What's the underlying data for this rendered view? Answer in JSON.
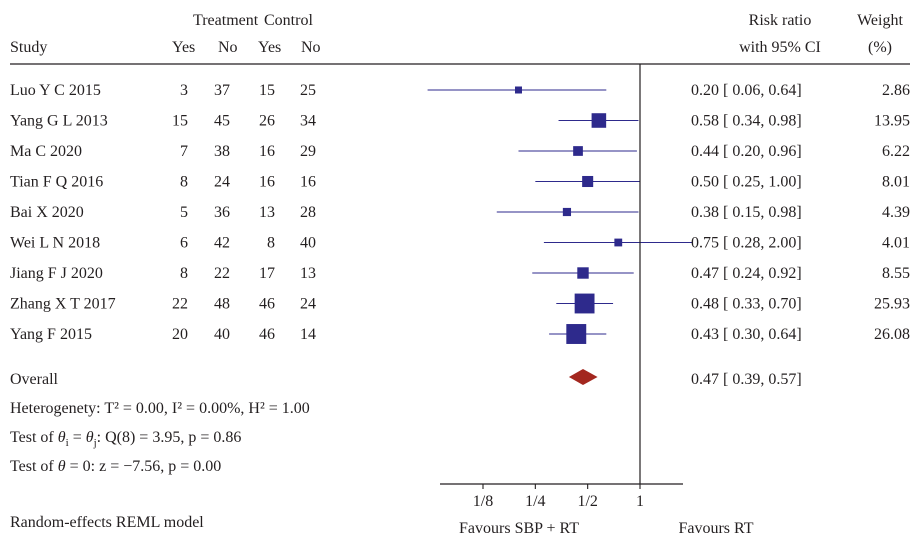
{
  "header": {
    "group_treatment": "Treatment",
    "group_control": "Control",
    "study": "Study",
    "yes": "Yes",
    "no": "No",
    "yes2": "Yes",
    "no2": "No",
    "rr_line1": "Risk ratio",
    "rr_line2": "with 95% CI",
    "weight_line1": "Weight",
    "weight_line2": "(%)"
  },
  "colors": {
    "marker": "#2e2a8c",
    "ci_line": "#2e2a8c",
    "overall_diamond": "#a3271f",
    "axis": "#231f20"
  },
  "footer": {
    "overall_label": "Overall",
    "overall_ci_text": "0.47 [  0.39,  0.57]",
    "heterogeneity": "Heterogenety: T² = 0.00, I² = 0.00%, H² = 1.00",
    "test_theta_prefix": "Test of ",
    "test_theta_rest": ": Q(8) = 3.95, p = 0.86",
    "test_zero_prefix": "Test of ",
    "test_zero_rest": " = 0: z = −7.56, p = 0.00",
    "model": "Random-effects REML model",
    "favours_left": "Favours SBP + RT",
    "favours_right": "Favours RT"
  },
  "chart_data": {
    "type": "forest",
    "scale": "log",
    "xlim": [
      0.05,
      2.0
    ],
    "ticks": [
      {
        "value": 0.125,
        "label": "1/8"
      },
      {
        "value": 0.25,
        "label": "1/4"
      },
      {
        "value": 0.5,
        "label": "1/2"
      },
      {
        "value": 1,
        "label": "1"
      }
    ],
    "studies": [
      {
        "name": "Luo Y C 2015",
        "t_yes": "3",
        "t_no": "37",
        "c_yes": "15",
        "c_no": "25",
        "rr": 0.2,
        "lo": 0.06,
        "hi": 0.64,
        "ci_text": "0.20 [  0.06,  0.64]",
        "weight": 2.86,
        "weight_text": "2.86"
      },
      {
        "name": "Yang G L 2013",
        "t_yes": "15",
        "t_no": "45",
        "c_yes": "26",
        "c_no": "34",
        "rr": 0.58,
        "lo": 0.34,
        "hi": 0.98,
        "ci_text": "0.58 [  0.34,  0.98]",
        "weight": 13.95,
        "weight_text": "13.95"
      },
      {
        "name": "Ma C 2020",
        "t_yes": "7",
        "t_no": "38",
        "c_yes": "16",
        "c_no": "29",
        "rr": 0.44,
        "lo": 0.2,
        "hi": 0.96,
        "ci_text": "0.44 [  0.20,  0.96]",
        "weight": 6.22,
        "weight_text": "6.22"
      },
      {
        "name": "Tian F Q 2016",
        "t_yes": "8",
        "t_no": "24",
        "c_yes": "16",
        "c_no": "16",
        "rr": 0.5,
        "lo": 0.25,
        "hi": 1.0,
        "ci_text": "0.50 [  0.25,  1.00]",
        "weight": 8.01,
        "weight_text": "8.01"
      },
      {
        "name": "Bai X 2020",
        "t_yes": "5",
        "t_no": "36",
        "c_yes": "13",
        "c_no": "28",
        "rr": 0.38,
        "lo": 0.15,
        "hi": 0.98,
        "ci_text": "0.38 [  0.15,  0.98]",
        "weight": 4.39,
        "weight_text": "4.39"
      },
      {
        "name": "Wei L N 2018",
        "t_yes": "6",
        "t_no": "42",
        "c_yes": "8",
        "c_no": "40",
        "rr": 0.75,
        "lo": 0.28,
        "hi": 2.0,
        "ci_text": "0.75 [  0.28,  2.00]",
        "weight": 4.01,
        "weight_text": "4.01"
      },
      {
        "name": "Jiang F J 2020",
        "t_yes": "8",
        "t_no": "22",
        "c_yes": "17",
        "c_no": "13",
        "rr": 0.47,
        "lo": 0.24,
        "hi": 0.92,
        "ci_text": "0.47 [  0.24,  0.92]",
        "weight": 8.55,
        "weight_text": "8.55"
      },
      {
        "name": "Zhang X T 2017",
        "t_yes": "22",
        "t_no": "48",
        "c_yes": "46",
        "c_no": "24",
        "rr": 0.48,
        "lo": 0.33,
        "hi": 0.7,
        "ci_text": "0.48 [  0.33,  0.70]",
        "weight": 25.93,
        "weight_text": "25.93"
      },
      {
        "name": "Yang F 2015",
        "t_yes": "20",
        "t_no": "40",
        "c_yes": "46",
        "c_no": "14",
        "rr": 0.43,
        "lo": 0.3,
        "hi": 0.64,
        "ci_text": "0.43 [  0.30,  0.64]",
        "weight": 26.08,
        "weight_text": "26.08"
      }
    ],
    "overall": {
      "rr": 0.47,
      "lo": 0.39,
      "hi": 0.57
    }
  }
}
